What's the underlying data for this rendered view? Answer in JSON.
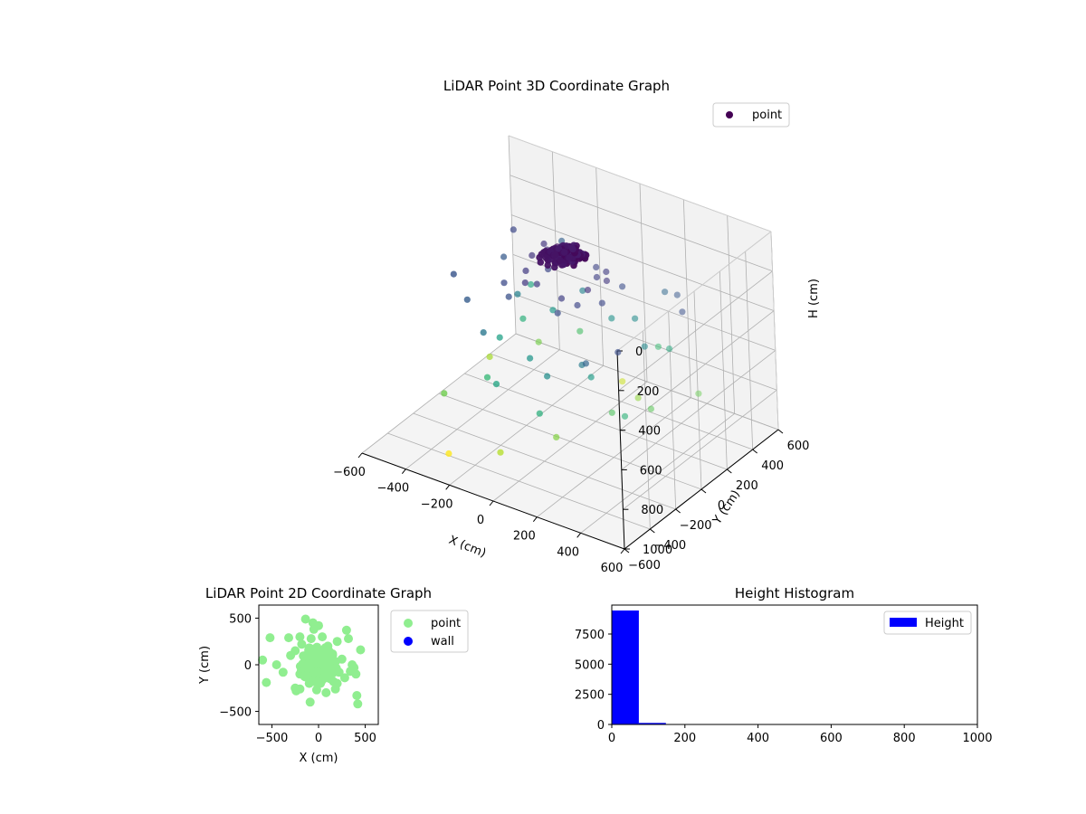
{
  "chart_data": [
    {
      "type": "scatter",
      "projection": "3d",
      "title": "LiDAR Point 3D Coordinate Graph",
      "xlabel": "X (cm)",
      "ylabel": "Y (cm)",
      "zlabel": "H (cm)",
      "xlim": [
        -600,
        600
      ],
      "ylim": [
        -600,
        600
      ],
      "zlim": [
        0,
        1000
      ],
      "z_inverted": true,
      "xticks": [
        "−600",
        "−400",
        "−200",
        "0",
        "200",
        "400",
        "600"
      ],
      "yticks": [
        "−600",
        "−400",
        "−200",
        "0",
        "200",
        "400",
        "600"
      ],
      "zticks": [
        "0",
        "200",
        "400",
        "600",
        "800",
        "1000"
      ],
      "colormap": "viridis",
      "grid": true,
      "legend": {
        "position": "top-right",
        "entries": [
          {
            "label": "point",
            "color": "#440154"
          }
        ]
      },
      "series": [
        {
          "name": "point",
          "points": [
            [
              -10,
              20,
              40
            ],
            [
              25,
              -15,
              55
            ],
            [
              -30,
              -10,
              30
            ],
            [
              15,
              35,
              60
            ],
            [
              40,
              10,
              45
            ],
            [
              -45,
              30,
              50
            ],
            [
              5,
              -40,
              65
            ],
            [
              -20,
              15,
              35
            ],
            [
              30,
              -30,
              70
            ],
            [
              -35,
              -35,
              45
            ],
            [
              50,
              25,
              55
            ],
            [
              -5,
              45,
              40
            ],
            [
              20,
              0,
              50
            ],
            [
              -25,
              -45,
              60
            ],
            [
              10,
              10,
              30
            ],
            [
              -50,
              5,
              55
            ],
            [
              35,
              40,
              65
            ],
            [
              -15,
              -20,
              45
            ],
            [
              45,
              -10,
              40
            ],
            [
              0,
              30,
              50
            ],
            [
              -130,
              90,
              130
            ],
            [
              150,
              -70,
              140
            ],
            [
              -90,
              -150,
              160
            ],
            [
              110,
              140,
              170
            ],
            [
              -170,
              40,
              150
            ],
            [
              70,
              -140,
              180
            ],
            [
              -100,
              170,
              190
            ],
            [
              160,
              60,
              155
            ],
            [
              -60,
              -110,
              175
            ],
            [
              130,
              -120,
              200
            ],
            [
              -140,
              -60,
              165
            ],
            [
              90,
              100,
              185
            ],
            [
              -180,
              150,
              150
            ],
            [
              190,
              -30,
              210
            ],
            [
              40,
              180,
              195
            ],
            [
              -200,
              -130,
              215
            ],
            [
              80,
              -190,
              225
            ],
            [
              -110,
              60,
              205
            ],
            [
              170,
              160,
              230
            ],
            [
              -150,
              -180,
              240
            ],
            [
              -380,
              250,
              210
            ],
            [
              420,
              -300,
              230
            ],
            [
              -300,
              -250,
              280
            ],
            [
              350,
              280,
              260
            ],
            [
              -250,
              400,
              290
            ],
            [
              300,
              -350,
              310
            ],
            [
              -420,
              -150,
              250
            ],
            [
              250,
              350,
              320
            ],
            [
              450,
              150,
              240
            ],
            [
              -350,
              120,
              270
            ],
            [
              -200,
              -300,
              380
            ],
            [
              220,
              -250,
              400
            ],
            [
              -100,
              300,
              430
            ],
            [
              150,
              280,
              460
            ],
            [
              -280,
              100,
              420
            ],
            [
              100,
              -320,
              470
            ],
            [
              300,
              100,
              450
            ],
            [
              -50,
              -200,
              500
            ],
            [
              60,
              250,
              480
            ],
            [
              -180,
              200,
              510
            ],
            [
              200,
              -150,
              520
            ],
            [
              -260,
              -80,
              540
            ],
            [
              -100,
              -380,
              560
            ],
            [
              120,
              -420,
              600
            ],
            [
              280,
              320,
              580
            ],
            [
              380,
              -200,
              620
            ],
            [
              -320,
              200,
              610
            ],
            [
              -400,
              400,
              570
            ],
            [
              180,
              400,
              650
            ],
            [
              -220,
              -250,
              640
            ],
            [
              260,
              -100,
              700
            ],
            [
              -150,
              350,
              680
            ],
            [
              350,
              50,
              720
            ],
            [
              -380,
              -320,
              750
            ],
            [
              120,
              -300,
              780
            ],
            [
              -300,
              280,
              760
            ],
            [
              200,
              200,
              800
            ],
            [
              -50,
              -450,
              850
            ],
            [
              420,
              300,
              740
            ],
            [
              -450,
              150,
              830
            ],
            [
              20,
              380,
              880
            ],
            [
              -320,
              -400,
              990
            ]
          ]
        }
      ]
    },
    {
      "type": "scatter",
      "title": "LiDAR Point 2D Coordinate Graph",
      "xlabel": "X (cm)",
      "ylabel": "Y (cm)",
      "xlim": [
        -640,
        640
      ],
      "ylim": [
        -640,
        640
      ],
      "xticks": [
        "−500",
        "0",
        "500"
      ],
      "yticks": [
        "−500",
        "0",
        "500"
      ],
      "legend": {
        "position": "outside-right",
        "entries": [
          {
            "label": "point",
            "color": "#90ee90"
          },
          {
            "label": "wall",
            "color": "#0000ff"
          }
        ]
      },
      "series": [
        {
          "name": "point",
          "color": "#90ee90",
          "points": [
            [
              -600,
              50
            ],
            [
              -560,
              -190
            ],
            [
              -520,
              290
            ],
            [
              -450,
              0
            ],
            [
              -380,
              -80
            ],
            [
              -320,
              290
            ],
            [
              -300,
              100
            ],
            [
              -250,
              -250
            ],
            [
              -240,
              -280
            ],
            [
              -200,
              -260
            ],
            [
              -200,
              300
            ],
            [
              -180,
              220
            ],
            [
              -160,
              -50
            ],
            [
              -140,
              490
            ],
            [
              -130,
              100
            ],
            [
              -100,
              180
            ],
            [
              -90,
              -400
            ],
            [
              -60,
              450
            ],
            [
              -50,
              380
            ],
            [
              -20,
              -270
            ],
            [
              0,
              420
            ],
            [
              20,
              -200
            ],
            [
              40,
              300
            ],
            [
              60,
              50
            ],
            [
              80,
              -300
            ],
            [
              100,
              200
            ],
            [
              120,
              -120
            ],
            [
              150,
              100
            ],
            [
              160,
              -180
            ],
            [
              180,
              -260
            ],
            [
              200,
              250
            ],
            [
              220,
              -80
            ],
            [
              250,
              60
            ],
            [
              280,
              -140
            ],
            [
              300,
              370
            ],
            [
              320,
              280
            ],
            [
              340,
              -70
            ],
            [
              360,
              0
            ],
            [
              380,
              -30
            ],
            [
              400,
              -100
            ],
            [
              410,
              -330
            ],
            [
              420,
              -420
            ],
            [
              450,
              160
            ],
            [
              -250,
              150
            ],
            [
              -200,
              -100
            ],
            [
              -150,
              0
            ],
            [
              -100,
              -200
            ],
            [
              -80,
              280
            ],
            [
              120,
              60
            ],
            [
              200,
              -200
            ]
          ],
          "dense_cluster": {
            "center": [
              0,
              0
            ],
            "radius": 200
          }
        },
        {
          "name": "wall",
          "color": "#0000ff",
          "points": []
        }
      ]
    },
    {
      "type": "bar",
      "subtype": "histogram",
      "title": "Height Histogram",
      "xlabel": "",
      "ylabel": "",
      "xlim": [
        0,
        1000
      ],
      "ylim": [
        0,
        9900
      ],
      "xticks": [
        "0",
        "200",
        "400",
        "600",
        "800",
        "1000"
      ],
      "yticks": [
        "0",
        "2500",
        "5000",
        "7500"
      ],
      "color": "#0000ff",
      "legend": {
        "position": "top-right",
        "entries": [
          {
            "label": "Height",
            "color": "#0000ff"
          }
        ]
      },
      "bins": [
        0,
        74,
        148,
        222,
        296,
        370,
        444,
        518,
        592,
        666,
        740,
        814,
        888,
        962,
        1000
      ],
      "counts": [
        9450,
        130,
        40,
        25,
        18,
        15,
        12,
        10,
        8,
        6,
        5,
        4,
        3,
        1
      ]
    }
  ]
}
